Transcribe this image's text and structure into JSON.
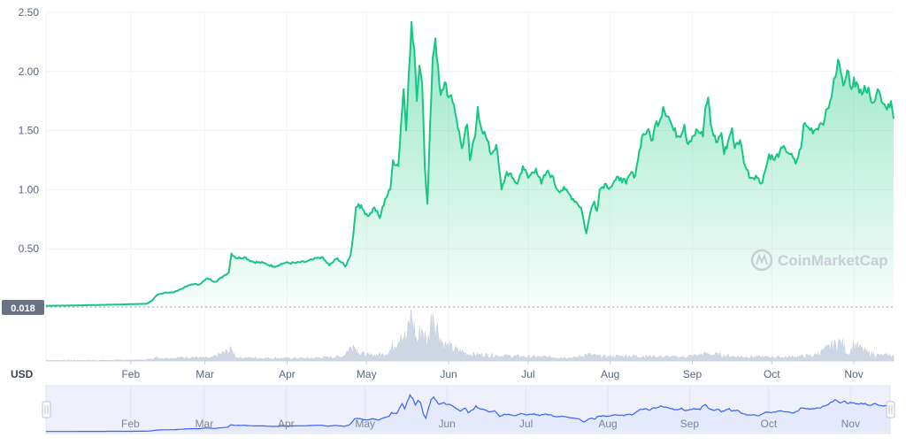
{
  "chart_data": {
    "type": "area",
    "watermark": "CoinMarketCap",
    "unit_label": "USD",
    "baseline_label": "0.018",
    "baseline_value": 0.018,
    "yticks": [
      {
        "v": 0.5,
        "label": "0.50"
      },
      {
        "v": 1.0,
        "label": "1.00"
      },
      {
        "v": 1.5,
        "label": "1.50"
      },
      {
        "v": 2.0,
        "label": "2.00"
      },
      {
        "v": 2.5,
        "label": "2.50"
      }
    ],
    "ylim": [
      0,
      2.5
    ],
    "xticks": [
      {
        "t": 32,
        "label": "Feb"
      },
      {
        "t": 60,
        "label": "Mar"
      },
      {
        "t": 91,
        "label": "Apr"
      },
      {
        "t": 121,
        "label": "May"
      },
      {
        "t": 152,
        "label": "Jun"
      },
      {
        "t": 182,
        "label": "Jul"
      },
      {
        "t": 213,
        "label": "Aug"
      },
      {
        "t": 244,
        "label": "Sep"
      },
      {
        "t": 274,
        "label": "Oct"
      },
      {
        "t": 305,
        "label": "Nov"
      }
    ],
    "x_domain": [
      0,
      320
    ],
    "colors": {
      "line": "#16c784",
      "volume": "#cfd6e4",
      "navigator_line": "#3861fb",
      "navigator_fill": "#e4eafc",
      "badge": "#6b7285"
    },
    "price_series": [
      [
        0,
        0.018
      ],
      [
        10,
        0.02
      ],
      [
        20,
        0.025
      ],
      [
        30,
        0.03
      ],
      [
        38,
        0.035
      ],
      [
        40,
        0.06
      ],
      [
        42,
        0.11
      ],
      [
        45,
        0.13
      ],
      [
        48,
        0.13
      ],
      [
        52,
        0.17
      ],
      [
        55,
        0.2
      ],
      [
        58,
        0.2
      ],
      [
        61,
        0.25
      ],
      [
        64,
        0.22
      ],
      [
        67,
        0.27
      ],
      [
        69,
        0.3
      ],
      [
        70,
        0.46
      ],
      [
        72,
        0.42
      ],
      [
        75,
        0.43
      ],
      [
        78,
        0.39
      ],
      [
        82,
        0.38
      ],
      [
        86,
        0.35
      ],
      [
        90,
        0.38
      ],
      [
        94,
        0.38
      ],
      [
        98,
        0.39
      ],
      [
        101,
        0.41
      ],
      [
        104,
        0.43
      ],
      [
        107,
        0.36
      ],
      [
        110,
        0.42
      ],
      [
        113,
        0.35
      ],
      [
        115,
        0.45
      ],
      [
        116,
        0.62
      ],
      [
        117,
        0.85
      ],
      [
        118,
        0.88
      ],
      [
        120,
        0.82
      ],
      [
        122,
        0.78
      ],
      [
        124,
        0.85
      ],
      [
        126,
        0.76
      ],
      [
        128,
        0.92
      ],
      [
        130,
        1.0
      ],
      [
        131,
        1.25
      ],
      [
        133,
        1.2
      ],
      [
        134,
        1.55
      ],
      [
        135,
        1.85
      ],
      [
        136,
        1.5
      ],
      [
        137,
        2.0
      ],
      [
        138,
        2.42
      ],
      [
        139,
        2.2
      ],
      [
        140,
        1.75
      ],
      [
        141,
        2.05
      ],
      [
        142,
        1.9
      ],
      [
        143,
        1.2
      ],
      [
        144,
        0.88
      ],
      [
        145,
        1.55
      ],
      [
        146,
        2.12
      ],
      [
        147,
        2.28
      ],
      [
        148,
        2.05
      ],
      [
        149,
        1.8
      ],
      [
        150,
        1.85
      ],
      [
        151,
        1.9
      ],
      [
        152,
        1.78
      ],
      [
        153,
        1.8
      ],
      [
        154,
        1.72
      ],
      [
        155,
        1.6
      ],
      [
        157,
        1.35
      ],
      [
        159,
        1.55
      ],
      [
        160,
        1.25
      ],
      [
        162,
        1.45
      ],
      [
        163,
        1.7
      ],
      [
        164,
        1.55
      ],
      [
        166,
        1.45
      ],
      [
        168,
        1.3
      ],
      [
        170,
        1.38
      ],
      [
        172,
        1.0
      ],
      [
        174,
        1.15
      ],
      [
        176,
        1.1
      ],
      [
        178,
        1.05
      ],
      [
        180,
        1.2
      ],
      [
        182,
        1.1
      ],
      [
        185,
        1.18
      ],
      [
        187,
        1.05
      ],
      [
        189,
        1.15
      ],
      [
        191,
        1.12
      ],
      [
        193,
        1.0
      ],
      [
        196,
        1.0
      ],
      [
        198,
        0.95
      ],
      [
        200,
        0.9
      ],
      [
        202,
        0.85
      ],
      [
        204,
        0.63
      ],
      [
        205,
        0.75
      ],
      [
        206,
        0.85
      ],
      [
        207,
        0.9
      ],
      [
        208,
        0.82
      ],
      [
        209,
        1.0
      ],
      [
        211,
        1.05
      ],
      [
        213,
        1.02
      ],
      [
        215,
        1.08
      ],
      [
        217,
        1.1
      ],
      [
        219,
        1.05
      ],
      [
        221,
        1.15
      ],
      [
        222,
        1.1
      ],
      [
        223,
        1.2
      ],
      [
        225,
        1.45
      ],
      [
        227,
        1.5
      ],
      [
        229,
        1.42
      ],
      [
        230,
        1.55
      ],
      [
        232,
        1.6
      ],
      [
        233,
        1.7
      ],
      [
        235,
        1.62
      ],
      [
        237,
        1.5
      ],
      [
        239,
        1.45
      ],
      [
        241,
        1.55
      ],
      [
        242,
        1.4
      ],
      [
        244,
        1.45
      ],
      [
        246,
        1.5
      ],
      [
        248,
        1.45
      ],
      [
        249,
        1.7
      ],
      [
        250,
        1.78
      ],
      [
        251,
        1.55
      ],
      [
        253,
        1.4
      ],
      [
        255,
        1.48
      ],
      [
        256,
        1.3
      ],
      [
        258,
        1.45
      ],
      [
        259,
        1.52
      ],
      [
        260,
        1.35
      ],
      [
        262,
        1.42
      ],
      [
        263,
        1.3
      ],
      [
        264,
        1.2
      ],
      [
        266,
        1.1
      ],
      [
        268,
        1.12
      ],
      [
        270,
        1.05
      ],
      [
        272,
        1.2
      ],
      [
        273,
        1.3
      ],
      [
        275,
        1.25
      ],
      [
        277,
        1.32
      ],
      [
        279,
        1.35
      ],
      [
        281,
        1.3
      ],
      [
        283,
        1.22
      ],
      [
        285,
        1.35
      ],
      [
        286,
        1.55
      ],
      [
        288,
        1.52
      ],
      [
        290,
        1.5
      ],
      [
        292,
        1.55
      ],
      [
        294,
        1.6
      ],
      [
        296,
        1.75
      ],
      [
        297,
        1.85
      ],
      [
        298,
        1.95
      ],
      [
        299,
        2.1
      ],
      [
        300,
        2.0
      ],
      [
        301,
        1.88
      ],
      [
        302,
        1.95
      ],
      [
        303,
        2.0
      ],
      [
        304,
        1.85
      ],
      [
        305,
        1.95
      ],
      [
        307,
        1.82
      ],
      [
        309,
        1.88
      ],
      [
        311,
        1.8
      ],
      [
        313,
        1.75
      ],
      [
        314,
        1.85
      ],
      [
        315,
        1.8
      ],
      [
        317,
        1.7
      ],
      [
        319,
        1.75
      ],
      [
        320,
        1.6
      ]
    ],
    "volume_series": [
      [
        0,
        0.01
      ],
      [
        20,
        0.01
      ],
      [
        38,
        0.02
      ],
      [
        41,
        0.06
      ],
      [
        45,
        0.05
      ],
      [
        55,
        0.07
      ],
      [
        62,
        0.05
      ],
      [
        70,
        0.2
      ],
      [
        72,
        0.06
      ],
      [
        90,
        0.05
      ],
      [
        100,
        0.05
      ],
      [
        112,
        0.08
      ],
      [
        116,
        0.3
      ],
      [
        118,
        0.15
      ],
      [
        122,
        0.1
      ],
      [
        128,
        0.12
      ],
      [
        131,
        0.25
      ],
      [
        134,
        0.5
      ],
      [
        136,
        0.4
      ],
      [
        138,
        0.85
      ],
      [
        140,
        0.35
      ],
      [
        142,
        0.6
      ],
      [
        144,
        0.3
      ],
      [
        146,
        0.9
      ],
      [
        148,
        0.55
      ],
      [
        150,
        0.3
      ],
      [
        155,
        0.2
      ],
      [
        160,
        0.12
      ],
      [
        170,
        0.1
      ],
      [
        180,
        0.08
      ],
      [
        200,
        0.06
      ],
      [
        204,
        0.12
      ],
      [
        210,
        0.08
      ],
      [
        220,
        0.09
      ],
      [
        240,
        0.07
      ],
      [
        250,
        0.13
      ],
      [
        260,
        0.08
      ],
      [
        270,
        0.07
      ],
      [
        280,
        0.07
      ],
      [
        290,
        0.1
      ],
      [
        300,
        0.35
      ],
      [
        303,
        0.12
      ],
      [
        305,
        0.3
      ],
      [
        310,
        0.15
      ],
      [
        315,
        0.1
      ],
      [
        320,
        0.1
      ]
    ],
    "volume_max": 1.0
  }
}
